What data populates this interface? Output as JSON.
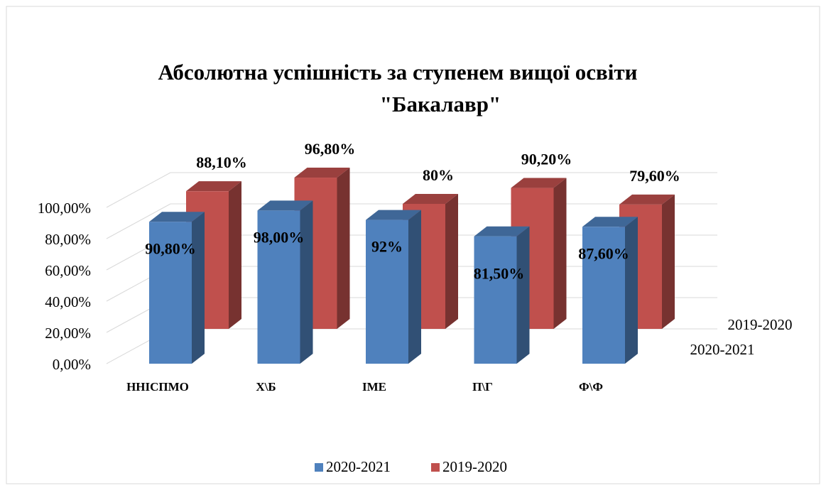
{
  "chart_data": {
    "type": "bar3d",
    "title": [
      "Абсолютна успішність за ступенем вищої освіти",
      "\"Бакалавр\""
    ],
    "categories": [
      "ННІСПМО",
      "Х\\Б",
      "ІМЕ",
      "П\\Г",
      "Ф\\Ф"
    ],
    "series": [
      {
        "name": "2020-2021",
        "color": "#4f81bd",
        "values": [
          90.8,
          98,
          92,
          81.5,
          87.6
        ],
        "value_labels": [
          "90,80%",
          "98,00%",
          "92%",
          "81,50%",
          "87,60%"
        ]
      },
      {
        "name": "2019-2020",
        "color": "#c0504d",
        "values": [
          88.1,
          96.8,
          80,
          90.2,
          79.6
        ],
        "value_labels": [
          "88,10%",
          "96,80%",
          "80%",
          "90,20%",
          "79,60%"
        ]
      }
    ],
    "ylim": [
      0,
      100
    ],
    "yticks": [
      {
        "value": 0,
        "label": "0,00%"
      },
      {
        "value": 20,
        "label": "20,00%"
      },
      {
        "value": 40,
        "label": "40,00%"
      },
      {
        "value": 60,
        "label": "60,00%"
      },
      {
        "value": 80,
        "label": "80,00%"
      },
      {
        "value": 100,
        "label": "100,00%"
      }
    ],
    "grid": true,
    "legend": "bottom"
  }
}
